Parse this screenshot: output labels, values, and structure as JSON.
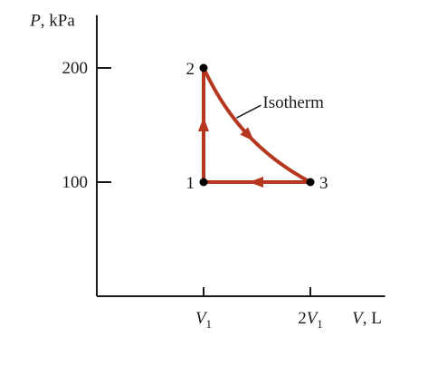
{
  "chart_data": {
    "type": "line",
    "title": "",
    "ylabel": {
      "var": "P",
      "unit": ", kPa"
    },
    "xlabel": {
      "var": "V",
      "unit": ", L"
    },
    "yticks": [
      {
        "value": 100,
        "label": "100"
      },
      {
        "value": 200,
        "label": "200"
      }
    ],
    "xticks": [
      {
        "value": 1,
        "coef": "",
        "var": "V",
        "sub": "1"
      },
      {
        "value": 2,
        "coef": "2",
        "var": "V",
        "sub": "1"
      }
    ],
    "xlim": [
      0,
      2.7
    ],
    "ylim": [
      0,
      240
    ],
    "grid": false,
    "points": [
      {
        "label": "1",
        "x": 1,
        "y": 100
      },
      {
        "label": "2",
        "x": 1,
        "y": 200
      },
      {
        "label": "3",
        "x": 2,
        "y": 100
      }
    ],
    "segments": [
      {
        "from": "1",
        "to": "2",
        "kind": "isochoric"
      },
      {
        "from": "2",
        "to": "3",
        "kind": "isotherm",
        "annotation": "Isotherm"
      },
      {
        "from": "3",
        "to": "1",
        "kind": "isobaric"
      }
    ],
    "colors": {
      "cycle": "#b5371f",
      "axis": "#1a1a1a",
      "point": "#000000"
    }
  }
}
